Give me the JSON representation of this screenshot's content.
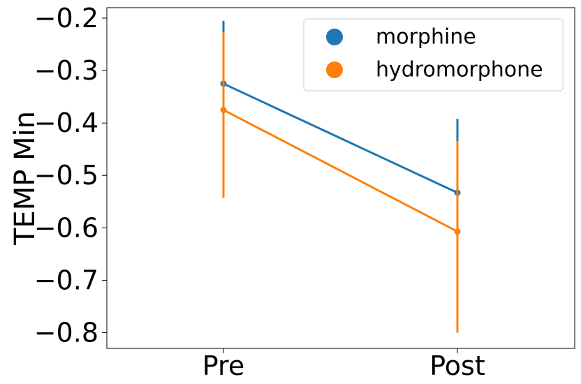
{
  "chart_data": {
    "type": "line",
    "categories": [
      "Pre",
      "Post"
    ],
    "ylabel": "TEMP Min",
    "xlabel": "",
    "title": "",
    "ylim": [
      -0.83,
      -0.18
    ],
    "yticks": [
      "−0.2",
      "−0.3",
      "−0.4",
      "−0.5",
      "−0.6",
      "−0.7",
      "−0.8"
    ],
    "ytick_values": [
      -0.2,
      -0.3,
      -0.4,
      -0.5,
      -0.6,
      -0.7,
      -0.8
    ],
    "grid": false,
    "legend_position": "top-right",
    "series": [
      {
        "name": "morphine",
        "color": "#1f77b4",
        "values": [
          -0.325,
          -0.533
        ],
        "ci_low": [
          -0.455,
          -0.672
        ],
        "ci_high": [
          -0.205,
          -0.392
        ]
      },
      {
        "name": "hydromorphone",
        "color": "#ff7f0e",
        "values": [
          -0.375,
          -0.607
        ],
        "ci_low": [
          -0.543,
          -0.8
        ],
        "ci_high": [
          -0.227,
          -0.434
        ]
      }
    ]
  }
}
